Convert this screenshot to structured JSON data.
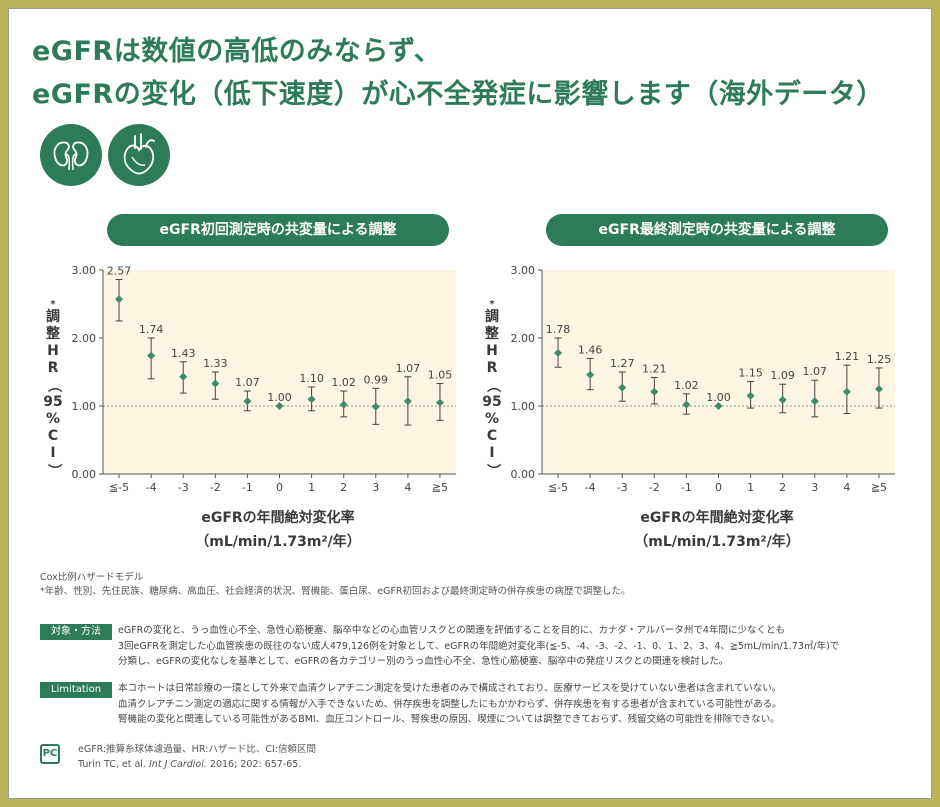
{
  "title": {
    "line1": "eGFRは数値の高低のみならず、",
    "line2": "eGFRの変化（低下速度）が心不全発症に影響します（海外データ）"
  },
  "icons": [
    "kidney-icon",
    "heart-icon"
  ],
  "colors": {
    "accent": "#2e7b5a",
    "plot_bg": "#fbf5e1",
    "marker": "#3f8a6b",
    "border": "#b9b35a"
  },
  "y_axis_label": [
    "*",
    "調",
    "整",
    "H",
    "R",
    "（",
    "95",
    "%",
    "C",
    "I",
    "）"
  ],
  "x_axis_label": {
    "line1": "eGFRの年間絶対変化率",
    "line2": "（mL/min/1.73m²/年）"
  },
  "chart_data": [
    {
      "type": "scatter",
      "title": "eGFR初回測定時の共変量による調整",
      "categories": [
        "≦-5",
        "-4",
        "-3",
        "-2",
        "-1",
        "0",
        "1",
        "2",
        "3",
        "4",
        "≧5"
      ],
      "values": [
        2.57,
        1.74,
        1.43,
        1.33,
        1.07,
        1.0,
        1.1,
        1.02,
        0.99,
        1.07,
        1.05
      ],
      "value_labels": [
        "2.57",
        "1.74",
        "1.43",
        "1.33",
        "1.07",
        "1.00",
        "1.10",
        "1.02",
        "0.99",
        "1.07",
        "1.05"
      ],
      "ci_lower": [
        2.25,
        1.4,
        1.19,
        1.1,
        0.93,
        1.0,
        0.93,
        0.84,
        0.73,
        0.72,
        0.79
      ],
      "ci_upper": [
        2.86,
        2.0,
        1.65,
        1.5,
        1.22,
        1.0,
        1.28,
        1.22,
        1.26,
        1.43,
        1.33
      ],
      "ylim": [
        0,
        3
      ],
      "yticks": [
        "0.00",
        "1.00",
        "2.00",
        "3.00"
      ],
      "reference_line": 1.0,
      "error_bars": "95% CI"
    },
    {
      "type": "scatter",
      "title": "eGFR最終測定時の共変量による調整",
      "categories": [
        "≦-5",
        "-4",
        "-3",
        "-2",
        "-1",
        "0",
        "1",
        "2",
        "3",
        "4",
        "≧5"
      ],
      "values": [
        1.78,
        1.46,
        1.27,
        1.21,
        1.02,
        1.0,
        1.15,
        1.09,
        1.07,
        1.21,
        1.25
      ],
      "value_labels": [
        "1.78",
        "1.46",
        "1.27",
        "1.21",
        "1.02",
        "1.00",
        "1.15",
        "1.09",
        "1.07",
        "1.21",
        "1.25"
      ],
      "ci_lower": [
        1.57,
        1.24,
        1.07,
        1.03,
        0.88,
        1.0,
        0.97,
        0.9,
        0.84,
        0.89,
        0.97
      ],
      "ci_upper": [
        2.0,
        1.7,
        1.5,
        1.42,
        1.18,
        1.0,
        1.36,
        1.32,
        1.38,
        1.6,
        1.56
      ],
      "ylim": [
        0,
        3
      ],
      "yticks": [
        "0.00",
        "1.00",
        "2.00",
        "3.00"
      ],
      "reference_line": 1.0,
      "error_bars": "95% CI"
    }
  ],
  "notes": {
    "model": "Cox比例ハザードモデル",
    "footnote": "*年齢、性別、先住民族、糖尿病、高血圧、社会経済的状況、腎機能、蛋白尿、eGFR初回および最終測定時の併存疾患の病歴で調整した。"
  },
  "methods": {
    "tag": "対象・方法",
    "lines": [
      "eGFRの変化と、うっ血性心不全、急性心筋梗塞、脳卒中などの心血管リスクとの関連を評価することを目的に、カナダ・アルバータ州で4年間に少なくとも",
      "3回eGFRを測定した心血管疾患の既往のない成人479,126例を対象として、eGFRの年間絶対変化率(≦-5、-4、-3、-2、-1、0、1、2、3、4、≧5mL/min/1.73㎡/年)で",
      "分類し、eGFRの変化なしを基準として、eGFRの各カテゴリー別のうっ血性心不全、急性心筋梗塞、脳卒中の発症リスクとの関連を検討した。"
    ]
  },
  "limitation": {
    "tag": "Limitation",
    "lines": [
      "本コホートは日常診療の一環として外来で血清クレアチニン測定を受けた患者のみで構成されており、医療サービスを受けていない患者は含まれていない。",
      "血清クレアチニン測定の適応に関する情報が入手できないため、併存疾患を調整したにもかかわらず、併存疾患を有する患者が含まれている可能性がある。",
      "腎機能の変化と関連している可能性があるBMI、血圧コントロール、腎疾患の原因、喫煙については調整できておらず、残留交絡の可能性を排除できない。"
    ]
  },
  "references": {
    "logo": "PC",
    "abbrev": "eGFR:推算糸球体濾過量、HR:ハザード比、CI:信頼区間",
    "citation_authors": "Turin TC, et al.",
    "citation_journal": "Int J Cardiol.",
    "citation_rest": "2016; 202: 657-65."
  }
}
